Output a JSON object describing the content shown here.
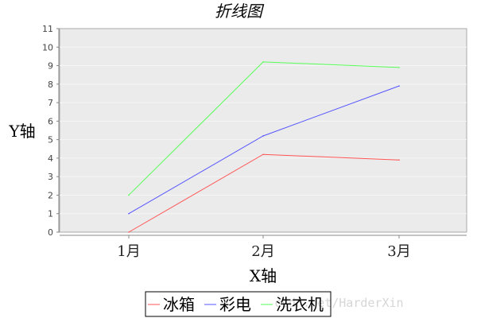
{
  "chart_data": {
    "type": "line",
    "title": "折线图",
    "xlabel": "X轴",
    "ylabel": "Y轴",
    "categories": [
      "1月",
      "2月",
      "3月"
    ],
    "ylim": [
      0,
      11
    ],
    "yticks": [
      0,
      1,
      2,
      3,
      4,
      5,
      6,
      7,
      8,
      9,
      10,
      11
    ],
    "grid": true,
    "legend_position": "bottom",
    "series": [
      {
        "name": "冰箱",
        "values": [
          0,
          4.2,
          3.9
        ],
        "color": "#ff5555"
      },
      {
        "name": "彩电",
        "values": [
          1,
          5.2,
          7.9
        ],
        "color": "#5555ff"
      },
      {
        "name": "洗衣机",
        "values": [
          2,
          9.2,
          8.9
        ],
        "color": "#55ff55"
      }
    ],
    "background": "#ebebeb"
  },
  "watermark": "csdn.net/HarderXin"
}
